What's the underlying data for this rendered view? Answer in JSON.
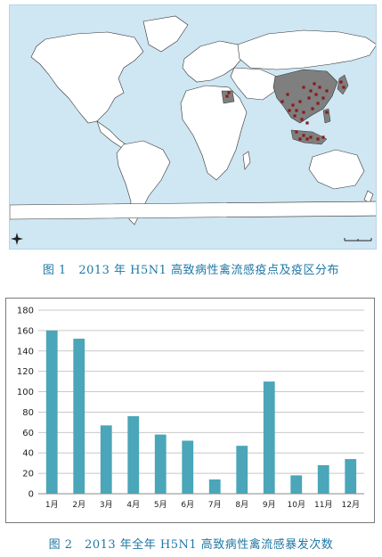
{
  "figure1": {
    "caption": "图 1　2013 年 H5N1 高致病性禽流感疫点及疫区分布"
  },
  "figure2": {
    "caption": "图 2　2013 年全年 H5N1 高致病性禽流感暴发次数"
  },
  "colors": {
    "ocean": "#cfe6f3",
    "land": "#ffffff",
    "affected_region": "#7f7f7f",
    "outbreak_point": "#8b1a1a",
    "bar": "#4aa6b8",
    "caption": "#1f77a4"
  },
  "chart_data": {
    "type": "bar",
    "categories": [
      "1月",
      "2月",
      "3月",
      "4月",
      "5月",
      "6月",
      "7月",
      "8月",
      "9月",
      "10月",
      "11月",
      "12月"
    ],
    "values": [
      160,
      152,
      67,
      76,
      58,
      52,
      14,
      47,
      110,
      18,
      28,
      34
    ],
    "yticks": [
      0,
      20,
      40,
      60,
      80,
      100,
      120,
      140,
      160,
      180
    ],
    "ylim": [
      0,
      180
    ],
    "title": "",
    "xlabel": "",
    "ylabel": "",
    "grid": true,
    "legend": "none"
  }
}
